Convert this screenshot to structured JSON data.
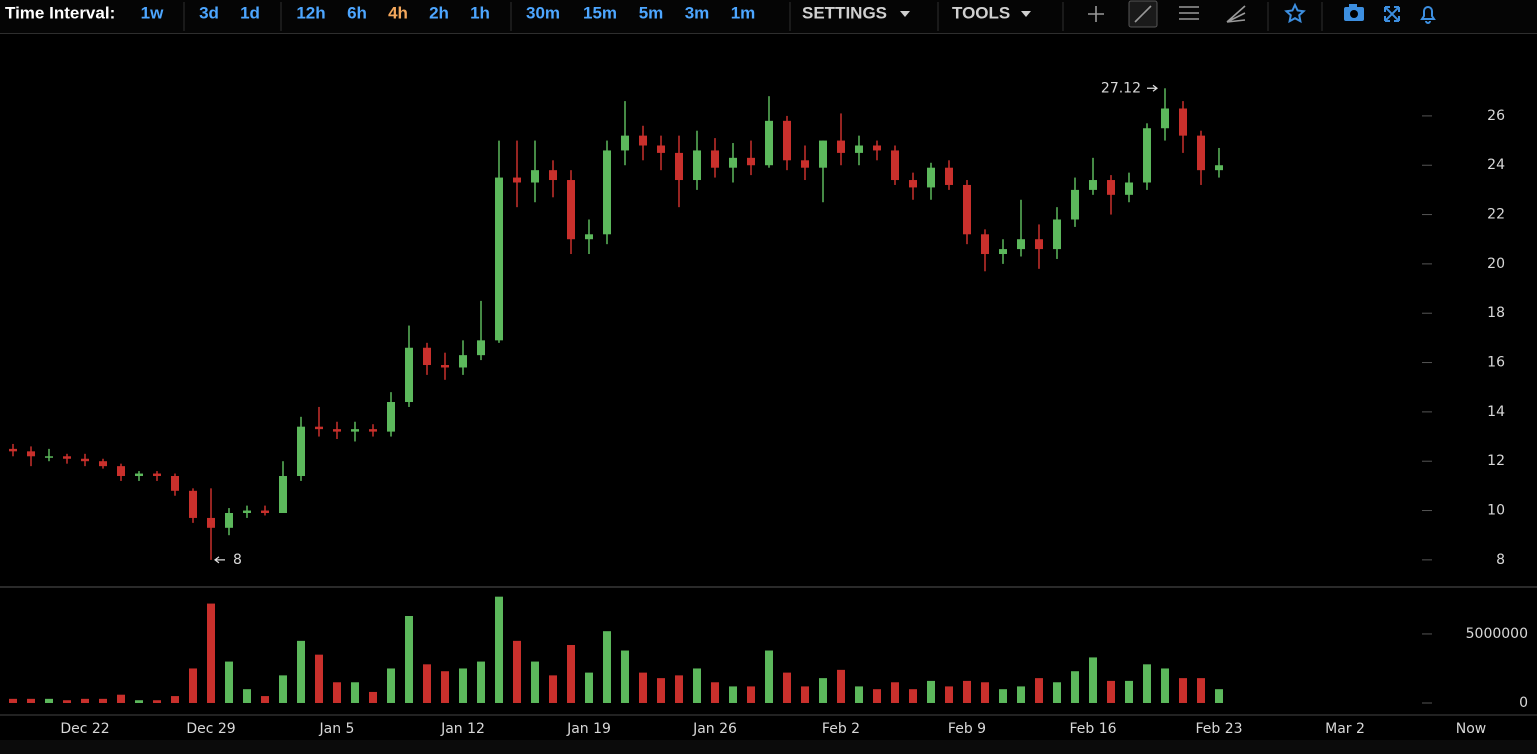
{
  "toolbar": {
    "label": "Time Interval:",
    "intervals": [
      "1w",
      "3d",
      "1d",
      "12h",
      "6h",
      "4h",
      "2h",
      "1h",
      "30m",
      "15m",
      "5m",
      "3m",
      "1m"
    ],
    "highlighted": "4h",
    "interval_color": "#4da6ff",
    "highlight_color": "#f5a85c",
    "menus": [
      "SETTINGS",
      "TOOLS"
    ]
  },
  "chart_data": {
    "type": "candlestick",
    "x": [
      "Dec 18",
      "Dec 19",
      "Dec 20",
      "Dec 21",
      "Dec 22",
      "Dec 23",
      "Dec 24",
      "Dec 25",
      "Dec 26",
      "Dec 27",
      "Dec 28",
      "Dec 29",
      "Dec 30",
      "Dec 31",
      "Jan 1",
      "Jan 2",
      "Jan 3",
      "Jan 4",
      "Jan 5",
      "Jan 6",
      "Jan 7",
      "Jan 8",
      "Jan 9",
      "Jan 10",
      "Jan 11",
      "Jan 12",
      "Jan 13",
      "Jan 14",
      "Jan 15",
      "Jan 16",
      "Jan 17",
      "Jan 18",
      "Jan 19",
      "Jan 20",
      "Jan 21",
      "Jan 22",
      "Jan 23",
      "Jan 24",
      "Jan 25",
      "Jan 26",
      "Jan 27",
      "Jan 28",
      "Jan 29",
      "Jan 30",
      "Jan 31",
      "Feb 1",
      "Feb 2",
      "Feb 3",
      "Feb 4",
      "Feb 5",
      "Feb 6",
      "Feb 7",
      "Feb 8",
      "Feb 9",
      "Feb 10",
      "Feb 11",
      "Feb 12",
      "Feb 13",
      "Feb 14",
      "Feb 15",
      "Feb 16",
      "Feb 17",
      "Feb 18",
      "Feb 19",
      "Feb 20",
      "Feb 21",
      "Feb 22",
      "Feb 23"
    ],
    "open": [
      12.5,
      12.4,
      12.2,
      12.2,
      12.1,
      12.0,
      11.8,
      11.4,
      11.5,
      11.4,
      10.8,
      9.7,
      9.3,
      9.9,
      10.0,
      9.9,
      11.4,
      13.4,
      13.3,
      13.2,
      13.3,
      13.2,
      14.4,
      16.6,
      15.9,
      15.8,
      16.3,
      16.9,
      23.5,
      23.3,
      23.8,
      23.4,
      21.0,
      21.2,
      24.6,
      25.2,
      24.8,
      24.5,
      23.4,
      24.6,
      23.9,
      24.3,
      24.0,
      25.8,
      24.2,
      23.9,
      25.0,
      24.5,
      24.8,
      24.6,
      23.4,
      23.1,
      23.9,
      23.2,
      21.2,
      20.4,
      20.6,
      21.0,
      20.6,
      21.8,
      23.0,
      23.4,
      22.8,
      23.3,
      25.5,
      26.3,
      25.2,
      23.8
    ],
    "high": [
      12.7,
      12.6,
      12.5,
      12.3,
      12.3,
      12.1,
      11.9,
      11.6,
      11.6,
      11.5,
      10.9,
      10.9,
      10.1,
      10.2,
      10.2,
      12.0,
      13.8,
      14.2,
      13.6,
      13.6,
      13.5,
      14.8,
      17.5,
      16.8,
      16.4,
      16.9,
      18.5,
      25.0,
      25.0,
      25.0,
      24.2,
      23.8,
      21.8,
      25.0,
      26.6,
      25.6,
      25.2,
      25.2,
      25.4,
      25.1,
      24.9,
      25.0,
      26.8,
      26.0,
      24.8,
      25.0,
      26.1,
      25.2,
      25.0,
      24.8,
      23.7,
      24.1,
      24.2,
      23.4,
      21.4,
      21.0,
      22.6,
      21.6,
      22.3,
      23.5,
      24.3,
      23.6,
      23.7,
      25.7,
      27.12,
      26.6,
      25.4,
      24.7
    ],
    "low": [
      12.2,
      11.8,
      12.0,
      11.9,
      11.8,
      11.7,
      11.2,
      11.2,
      11.2,
      10.6,
      9.5,
      8,
      9.0,
      9.7,
      9.8,
      9.9,
      11.2,
      13.0,
      12.9,
      12.8,
      13.0,
      13.0,
      14.2,
      15.5,
      15.3,
      15.5,
      16.1,
      16.8,
      22.3,
      22.5,
      22.7,
      20.4,
      20.4,
      20.8,
      24.0,
      24.2,
      23.8,
      22.3,
      23.0,
      23.5,
      23.3,
      23.6,
      23.9,
      23.8,
      23.4,
      22.5,
      24.0,
      24.0,
      24.2,
      23.2,
      22.6,
      22.6,
      23.0,
      20.8,
      19.7,
      20.0,
      20.3,
      19.8,
      20.2,
      21.5,
      22.8,
      22.0,
      22.5,
      23.0,
      25.0,
      24.5,
      23.2,
      23.5
    ],
    "close": [
      12.4,
      12.2,
      12.2,
      12.1,
      12.0,
      11.8,
      11.4,
      11.5,
      11.4,
      10.8,
      9.7,
      9.3,
      9.9,
      10.0,
      9.9,
      11.4,
      13.4,
      13.3,
      13.2,
      13.3,
      13.2,
      14.4,
      16.6,
      15.9,
      15.8,
      16.3,
      16.9,
      23.5,
      23.3,
      23.8,
      23.4,
      21.0,
      21.2,
      24.6,
      25.2,
      24.8,
      24.5,
      23.4,
      24.6,
      23.9,
      24.3,
      24.0,
      25.8,
      24.2,
      23.9,
      25.0,
      24.5,
      24.8,
      24.6,
      23.4,
      23.1,
      23.9,
      23.2,
      21.2,
      20.4,
      20.6,
      21.0,
      20.6,
      21.8,
      23.0,
      23.4,
      22.8,
      23.3,
      25.5,
      26.3,
      25.2,
      23.8,
      24.0
    ],
    "volume": [
      300000,
      300000,
      300000,
      200000,
      300000,
      300000,
      600000,
      200000,
      200000,
      500000,
      2500000,
      7200000,
      3000000,
      1000000,
      500000,
      2000000,
      4500000,
      3500000,
      1500000,
      1500000,
      800000,
      2500000,
      6300000,
      2800000,
      2300000,
      2500000,
      3000000,
      7700000,
      4500000,
      3000000,
      2000000,
      4200000,
      2200000,
      5200000,
      3800000,
      2200000,
      1800000,
      2000000,
      2500000,
      1500000,
      1200000,
      1200000,
      3800000,
      2200000,
      1200000,
      1800000,
      2400000,
      1200000,
      1000000,
      1500000,
      1000000,
      1600000,
      1200000,
      1600000,
      1500000,
      1000000,
      1200000,
      1800000,
      1500000,
      2300000,
      3300000,
      1600000,
      1600000,
      2800000,
      2500000,
      1800000,
      1800000,
      1000000
    ],
    "up_color": "#5cb85c",
    "down_color": "#c9302c",
    "ylim": [
      6.9,
      29.28
    ],
    "yticks": [
      8,
      10,
      12,
      14,
      16,
      18,
      20,
      22,
      24,
      26
    ],
    "volume_ylim": [
      -870000,
      8400000
    ],
    "volume_yticks": [
      0,
      5000000
    ],
    "xticks": [
      "Dec 22",
      "Dec 29",
      "Jan 5",
      "Jan 12",
      "Jan 19",
      "Jan 26",
      "Feb 2",
      "Feb 9",
      "Feb 16",
      "Feb 23",
      "Mar 2",
      "Now"
    ]
  }
}
